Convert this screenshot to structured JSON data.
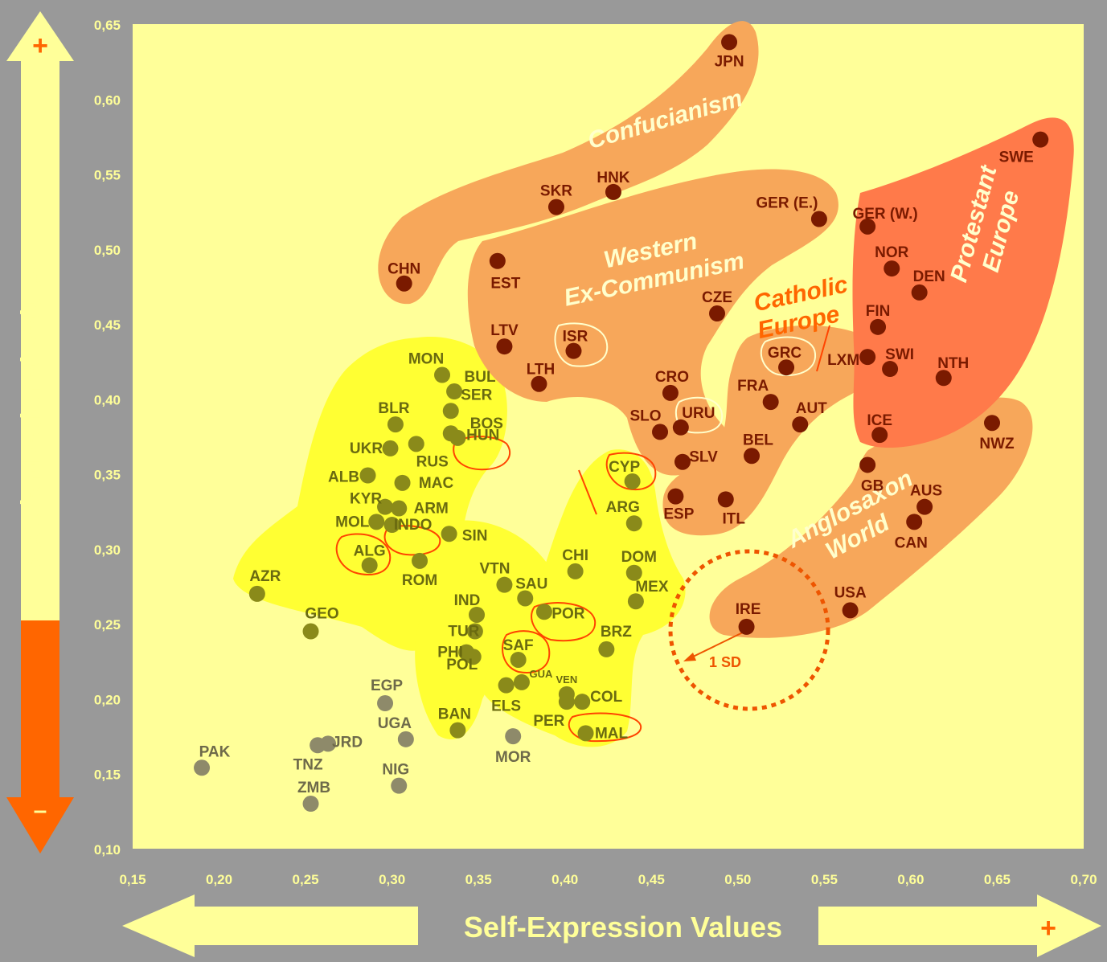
{
  "chart_data": {
    "type": "scatter",
    "title": "",
    "xlabel": "Self-Expression Values",
    "ylabel": "Secular-Rational Values",
    "xlim": [
      0.15,
      0.7
    ],
    "ylim": [
      0.1,
      0.65
    ],
    "x_ticks": [
      "0,15",
      "0,20",
      "0,25",
      "0,30",
      "0,35",
      "0,40",
      "0,45",
      "0,50",
      "0,55",
      "0,60",
      "0,65",
      "0,70"
    ],
    "y_ticks": [
      "0,65",
      "0,60",
      "0,55",
      "0,50",
      "0,45",
      "0,40",
      "0,35",
      "0,30",
      "0,25",
      "0,20",
      "0,15",
      "0,10"
    ],
    "x_axis_plus": "+",
    "y_axis_plus": "+",
    "y_axis_minus": "–",
    "grid": false,
    "legend": "none",
    "colors": {
      "plot_bg": "#FFFF99",
      "frame_bg": "#999999",
      "tick_text": "#FFFF99",
      "arrow_light": "#FFFF99",
      "arrow_orange": "#FF6600",
      "region_yellow": "#FFFF33",
      "region_orange": "#F7A75A",
      "region_red": "#FF7A4A",
      "point_dark_red": "#7A1A00",
      "point_olive": "#8A8A1A",
      "point_gray": "#8E8A6A",
      "outline": "#FF4400"
    },
    "regions": [
      {
        "name": "Confucianism"
      },
      {
        "name": "Western Ex-Communism"
      },
      {
        "name": "Catholic Europe"
      },
      {
        "name": "Protestant Europe"
      },
      {
        "name": "Anglosaxon World"
      }
    ],
    "annotation": "1 SD",
    "series": [
      {
        "group": "protestant",
        "points": [
          {
            "label": "SWE",
            "x": 0.675,
            "y": 0.573
          },
          {
            "label": "GER (W.)",
            "x": 0.575,
            "y": 0.515
          },
          {
            "label": "NOR",
            "x": 0.589,
            "y": 0.487
          },
          {
            "label": "DEN",
            "x": 0.605,
            "y": 0.471
          },
          {
            "label": "FIN",
            "x": 0.581,
            "y": 0.448
          },
          {
            "label": "SWI",
            "x": 0.588,
            "y": 0.42
          },
          {
            "label": "NTH",
            "x": 0.619,
            "y": 0.414
          },
          {
            "label": "ICE",
            "x": 0.582,
            "y": 0.376
          }
        ]
      },
      {
        "group": "confucian",
        "points": [
          {
            "label": "JPN",
            "x": 0.495,
            "y": 0.638
          },
          {
            "label": "HNK",
            "x": 0.428,
            "y": 0.538
          },
          {
            "label": "SKR",
            "x": 0.395,
            "y": 0.528
          },
          {
            "label": "CHN",
            "x": 0.307,
            "y": 0.477
          }
        ]
      },
      {
        "group": "excommunist",
        "points": [
          {
            "label": "GER (E.)",
            "x": 0.547,
            "y": 0.52
          },
          {
            "label": "EST",
            "x": 0.361,
            "y": 0.492
          },
          {
            "label": "CZE",
            "x": 0.488,
            "y": 0.457
          },
          {
            "label": "LTV",
            "x": 0.365,
            "y": 0.435
          },
          {
            "label": "ISR",
            "x": 0.405,
            "y": 0.432
          },
          {
            "label": "LTH",
            "x": 0.385,
            "y": 0.41
          },
          {
            "label": "CRO",
            "x": 0.461,
            "y": 0.404
          },
          {
            "label": "SLO",
            "x": 0.455,
            "y": 0.378
          },
          {
            "label": "URU",
            "x": 0.467,
            "y": 0.381
          },
          {
            "label": "SLV",
            "x": 0.468,
            "y": 0.358
          }
        ]
      },
      {
        "group": "catholic",
        "points": [
          {
            "label": "GRC",
            "x": 0.528,
            "y": 0.421
          },
          {
            "label": "LXM",
            "x": 0.575,
            "y": 0.428
          },
          {
            "label": "FRA",
            "x": 0.519,
            "y": 0.398
          },
          {
            "label": "AUT",
            "x": 0.536,
            "y": 0.383
          },
          {
            "label": "BEL",
            "x": 0.508,
            "y": 0.362
          },
          {
            "label": "ESP",
            "x": 0.464,
            "y": 0.335
          },
          {
            "label": "ITL",
            "x": 0.493,
            "y": 0.333
          }
        ]
      },
      {
        "group": "anglosaxon",
        "points": [
          {
            "label": "NWZ",
            "x": 0.647,
            "y": 0.384
          },
          {
            "label": "GB",
            "x": 0.575,
            "y": 0.356
          },
          {
            "label": "AUS",
            "x": 0.608,
            "y": 0.328
          },
          {
            "label": "CAN",
            "x": 0.602,
            "y": 0.318
          },
          {
            "label": "USA",
            "x": 0.565,
            "y": 0.259
          },
          {
            "label": "IRE",
            "x": 0.505,
            "y": 0.248
          }
        ]
      },
      {
        "group": "yellow",
        "points": [
          {
            "label": "MON",
            "x": 0.329,
            "y": 0.416
          },
          {
            "label": "BUL",
            "x": 0.336,
            "y": 0.405
          },
          {
            "label": "BLR",
            "x": 0.302,
            "y": 0.383
          },
          {
            "label": "SER",
            "x": 0.334,
            "y": 0.392
          },
          {
            "label": "BOS",
            "x": 0.338,
            "y": 0.374
          },
          {
            "label": "UKR",
            "x": 0.299,
            "y": 0.367
          },
          {
            "label": "RUS",
            "x": 0.314,
            "y": 0.37
          },
          {
            "label": "HUN",
            "x": 0.334,
            "y": 0.377
          },
          {
            "label": "ALB",
            "x": 0.286,
            "y": 0.349
          },
          {
            "label": "MAC",
            "x": 0.306,
            "y": 0.344
          },
          {
            "label": "KYR",
            "x": 0.296,
            "y": 0.328
          },
          {
            "label": "ARM",
            "x": 0.304,
            "y": 0.327
          },
          {
            "label": "MOL",
            "x": 0.291,
            "y": 0.318
          },
          {
            "label": "INDO",
            "x": 0.3,
            "y": 0.316
          },
          {
            "label": "ALG",
            "x": 0.287,
            "y": 0.289
          },
          {
            "label": "ROM",
            "x": 0.316,
            "y": 0.292
          },
          {
            "label": "SIN",
            "x": 0.333,
            "y": 0.31
          },
          {
            "label": "AZR",
            "x": 0.222,
            "y": 0.27
          },
          {
            "label": "GEO",
            "x": 0.253,
            "y": 0.245
          },
          {
            "label": "CYP",
            "x": 0.439,
            "y": 0.345
          },
          {
            "label": "ARG",
            "x": 0.44,
            "y": 0.317
          },
          {
            "label": "CHI",
            "x": 0.406,
            "y": 0.285
          },
          {
            "label": "DOM",
            "x": 0.44,
            "y": 0.284
          },
          {
            "label": "MEX",
            "x": 0.441,
            "y": 0.265
          },
          {
            "label": "VTN",
            "x": 0.365,
            "y": 0.276
          },
          {
            "label": "SAU",
            "x": 0.377,
            "y": 0.267
          },
          {
            "label": "IND",
            "x": 0.349,
            "y": 0.256
          },
          {
            "label": "POR",
            "x": 0.388,
            "y": 0.258
          },
          {
            "label": "TUR",
            "x": 0.348,
            "y": 0.245
          },
          {
            "label": "BRZ",
            "x": 0.424,
            "y": 0.233
          },
          {
            "label": "PHI",
            "x": 0.343,
            "y": 0.231
          },
          {
            "label": "POL",
            "x": 0.347,
            "y": 0.228
          },
          {
            "label": "SAF",
            "x": 0.373,
            "y": 0.226
          },
          {
            "label": "GUA",
            "x": 0.375,
            "y": 0.211
          },
          {
            "label": "ELS",
            "x": 0.366,
            "y": 0.209
          },
          {
            "label": "VEN",
            "x": 0.401,
            "y": 0.203
          },
          {
            "label": "COL",
            "x": 0.41,
            "y": 0.198
          },
          {
            "label": "PER",
            "x": 0.401,
            "y": 0.198
          },
          {
            "label": "BAN",
            "x": 0.338,
            "y": 0.179
          },
          {
            "label": "MAL",
            "x": 0.412,
            "y": 0.177
          }
        ]
      },
      {
        "group": "gray",
        "points": [
          {
            "label": "EGP",
            "x": 0.296,
            "y": 0.197
          },
          {
            "label": "JRD",
            "x": 0.263,
            "y": 0.17
          },
          {
            "label": "TNZ",
            "x": 0.257,
            "y": 0.169
          },
          {
            "label": "UGA",
            "x": 0.308,
            "y": 0.173
          },
          {
            "label": "MOR",
            "x": 0.37,
            "y": 0.175
          },
          {
            "label": "PAK",
            "x": 0.19,
            "y": 0.154
          },
          {
            "label": "NIG",
            "x": 0.304,
            "y": 0.142
          },
          {
            "label": "ZMB",
            "x": 0.253,
            "y": 0.13
          }
        ]
      }
    ]
  }
}
